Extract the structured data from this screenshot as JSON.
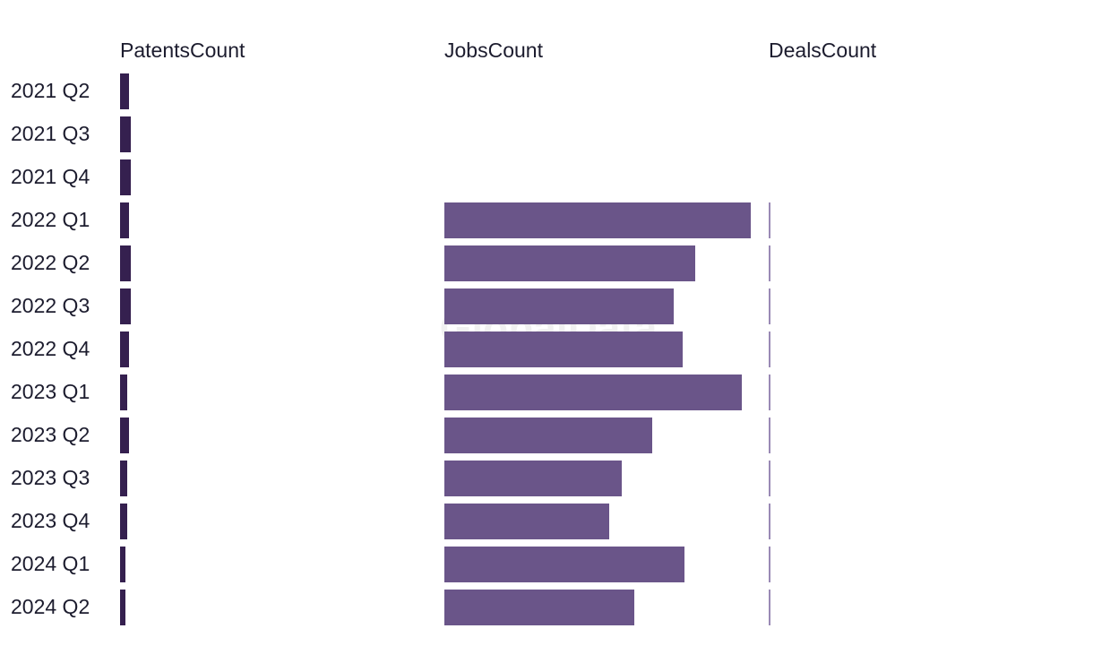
{
  "chart_data": {
    "type": "bar",
    "orientation": "horizontal",
    "layout": "small-multiples",
    "watermark": "GlobalData",
    "categories": [
      "2021 Q2",
      "2021 Q3",
      "2021 Q4",
      "2022 Q1",
      "2022 Q2",
      "2022 Q3",
      "2022 Q4",
      "2023 Q1",
      "2023 Q2",
      "2023 Q3",
      "2023 Q4",
      "2024 Q1",
      "2024 Q2"
    ],
    "xlim": [
      0,
      342
    ],
    "series": [
      {
        "name": "PatentsCount",
        "color": "#35204f",
        "values": [
          10,
          12,
          12,
          10,
          12,
          12,
          10,
          8,
          10,
          8,
          8,
          6,
          6
        ]
      },
      {
        "name": "JobsCount",
        "color": "#6a5589",
        "values": [
          null,
          null,
          null,
          342,
          280,
          256,
          266,
          332,
          232,
          198,
          184,
          268,
          212
        ]
      },
      {
        "name": "DealsCount",
        "color": "#9a8ab5",
        "values": [
          null,
          null,
          null,
          2,
          2,
          2,
          2,
          2,
          2,
          2,
          2,
          2,
          2
        ]
      }
    ]
  }
}
